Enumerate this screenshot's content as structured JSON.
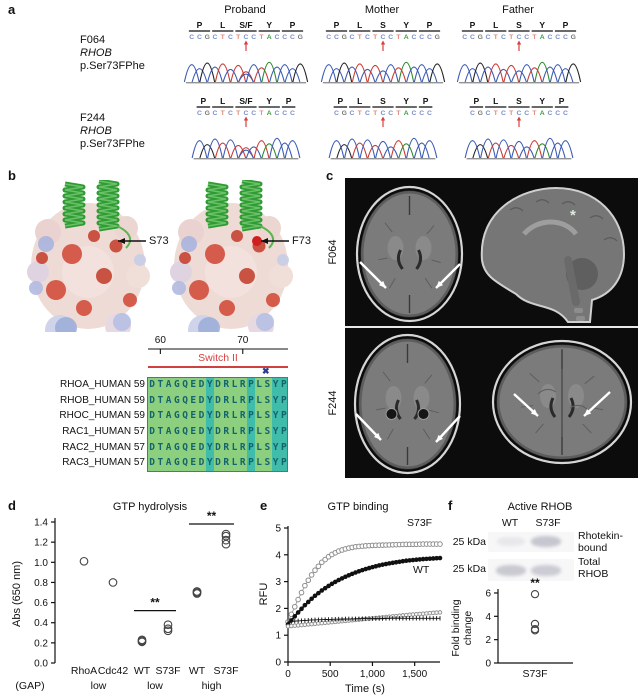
{
  "panels": {
    "a": {
      "label": "a",
      "col_headers": [
        "Proband",
        "Mother",
        "Father"
      ],
      "nt_letter_colors": {
        "A": "#3f9e3f",
        "C": "#7b90cc",
        "G": "#777777",
        "T": "#e08a7a"
      },
      "nt_trace_colors": {
        "A": "#2e8b2e",
        "C": "#3b5bb5",
        "G": "#222222",
        "T": "#cc3a33"
      },
      "rows": [
        {
          "family": "F064",
          "gene": "RHOB",
          "protein": "p.Ser73FPhe",
          "traces": [
            {
              "aa": [
                "P",
                "L",
                "S/F",
                "Y",
                "P"
              ],
              "codons": [
                "CCG",
                "CTC",
                "TCC",
                "TAC",
                "CCG"
              ],
              "arrow_nt_index": 7,
              "heterozygous": true
            },
            {
              "aa": [
                "P",
                "L",
                "S",
                "Y",
                "P"
              ],
              "codons": [
                "CCG",
                "CTC",
                "TCC",
                "TAC",
                "CCG"
              ],
              "arrow_nt_index": 7,
              "heterozygous": false
            },
            {
              "aa": [
                "P",
                "L",
                "S",
                "Y",
                "P"
              ],
              "codons": [
                "CCG",
                "CTC",
                "TCC",
                "TAC",
                "CCG"
              ],
              "arrow_nt_index": 7,
              "heterozygous": false
            }
          ]
        },
        {
          "family": "F244",
          "gene": "RHOB",
          "protein": "p.Ser73FPhe",
          "traces": [
            {
              "aa": [
                "P",
                "L",
                "S/F",
                "Y",
                "P"
              ],
              "codons": [
                "CG",
                "CTC",
                "TCC",
                "TAC",
                "CC"
              ],
              "arrow_nt_index": 6,
              "heterozygous": true
            },
            {
              "aa": [
                "P",
                "L",
                "S",
                "Y",
                "P"
              ],
              "codons": [
                "CG",
                "CTC",
                "TCC",
                "TAC",
                "CC"
              ],
              "arrow_nt_index": 6,
              "heterozygous": false
            },
            {
              "aa": [
                "P",
                "L",
                "S",
                "Y",
                "P"
              ],
              "codons": [
                "CG",
                "CTC",
                "TCC",
                "TAC",
                "CC"
              ],
              "arrow_nt_index": 6,
              "heterozygous": false
            }
          ]
        }
      ]
    },
    "b": {
      "label": "b",
      "structures": [
        {
          "residue_label": "S73",
          "red_pocket": false
        },
        {
          "residue_label": "F73",
          "red_pocket": true
        }
      ],
      "alignment": {
        "ruler_ticks": [
          "60",
          "70"
        ],
        "ruler_tick_cols": [
          2,
          12
        ],
        "region_label": "Switch II",
        "mutation_marker": "✖",
        "mutation_col": 15,
        "teal_cols": [
          8,
          13,
          16,
          17
        ],
        "colors": {
          "green": "#8ccf7f",
          "teal": "#3fbcaa",
          "border": "#b5522f"
        },
        "rows": [
          {
            "name": "RHOA_HUMAN",
            "start": "59",
            "seq": "DTAGQEDYDRLRPLSYP"
          },
          {
            "name": "RHOB_HUMAN",
            "start": "59",
            "seq": "DTAGQEDYDRLRPLSYP"
          },
          {
            "name": "RHOC_HUMAN",
            "start": "59",
            "seq": "DTAGQEDYDRLRPLSYP"
          },
          {
            "name": "RAC1_HUMAN",
            "start": "57",
            "seq": "DTAGQEDYDRLRPLSYP"
          },
          {
            "name": "RAC2_HUMAN",
            "start": "57",
            "seq": "DTAGQEDYDRLRPLSYP"
          },
          {
            "name": "RAC3_HUMAN",
            "start": "57",
            "seq": "DTAGQEDYDRLRPLSYP"
          }
        ]
      }
    },
    "c": {
      "label": "c",
      "rows": [
        {
          "family": "F064",
          "images": [
            {
              "view": "axial",
              "arrows": 2,
              "annotation": ""
            },
            {
              "view": "sagittal",
              "arrows": 0,
              "annotation": "*"
            }
          ]
        },
        {
          "family": "F244",
          "images": [
            {
              "view": "axial",
              "arrows": 2,
              "annotation": ""
            },
            {
              "view": "axial-high",
              "arrows": 2,
              "annotation": ""
            }
          ]
        }
      ]
    },
    "d": {
      "label": "d"
    },
    "e": {
      "label": "e"
    },
    "f": {
      "label": "f",
      "title": "Active RHOB",
      "lanes": [
        "WT",
        "S73F"
      ],
      "blots": [
        {
          "marker": "25 kDa",
          "label_lines": [
            "Rhotekin-",
            "bound"
          ],
          "band_intensity": [
            0.15,
            0.5
          ]
        },
        {
          "marker": "25 kDa",
          "label_lines": [
            "Total",
            "RHOB"
          ],
          "band_intensity": [
            0.48,
            0.45
          ]
        }
      ]
    }
  },
  "chart_data": [
    {
      "panel": "d",
      "type": "scatter",
      "title": "GTP hydrolysis",
      "ylabel": "Abs (650 nm)",
      "ylim": [
        0.0,
        1.4
      ],
      "yticks": [
        0.0,
        0.2,
        0.4,
        0.6,
        0.8,
        1.0,
        1.2,
        1.4
      ],
      "categories": [
        "RhoA",
        "Cdc42",
        "WT",
        "S73F",
        "WT",
        "S73F"
      ],
      "axis_note": "(GAP)",
      "group_labels": [
        {
          "text": "low",
          "between": [
            0,
            1
          ]
        },
        {
          "text": "low",
          "between": [
            2,
            3
          ]
        },
        {
          "text": "high",
          "between": [
            4,
            5
          ]
        }
      ],
      "values": [
        [
          1.01
        ],
        [
          0.8
        ],
        [
          0.21,
          0.22,
          0.23
        ],
        [
          0.32,
          0.34,
          0.38
        ],
        [
          0.69,
          0.7,
          0.71
        ],
        [
          1.18,
          1.22,
          1.26,
          1.28
        ]
      ],
      "significance": [
        {
          "between": [
            2,
            3
          ],
          "bar_y": 0.52,
          "label": "**"
        },
        {
          "between": [
            4,
            5
          ],
          "bar_y": 1.38,
          "label": "**"
        }
      ]
    },
    {
      "panel": "e",
      "type": "line",
      "title": "GTP binding",
      "xlabel": "Time (s)",
      "ylabel": "RFU",
      "xlim": [
        0,
        1800
      ],
      "ylim": [
        0,
        5
      ],
      "yticks": [
        0,
        1,
        2,
        3,
        4,
        5
      ],
      "xticks": [
        0,
        500,
        1000,
        1500
      ],
      "xtick_labels": [
        "0",
        "500",
        "1,000",
        "1,500"
      ],
      "x_sample": [
        0,
        100,
        200,
        300,
        400,
        500,
        600,
        700,
        800,
        900,
        1000,
        1100,
        1200,
        1300,
        1400,
        1500,
        1600,
        1700,
        1800
      ],
      "series": [
        {
          "name": "S73F",
          "style": "open-gray",
          "values": [
            1.5,
            2.2,
            2.85,
            3.35,
            3.72,
            3.98,
            4.14,
            4.24,
            4.3,
            4.33,
            4.35,
            4.36,
            4.37,
            4.38,
            4.39,
            4.39,
            4.4,
            4.4,
            4.4
          ]
        },
        {
          "name": "WT",
          "style": "filled-black",
          "values": [
            1.4,
            1.78,
            2.12,
            2.42,
            2.67,
            2.88,
            3.06,
            3.21,
            3.34,
            3.45,
            3.54,
            3.62,
            3.68,
            3.73,
            3.78,
            3.81,
            3.84,
            3.86,
            3.88
          ]
        },
        {
          "name": "",
          "style": "open-gray-small",
          "values": [
            1.33,
            1.36,
            1.39,
            1.42,
            1.45,
            1.48,
            1.51,
            1.54,
            1.57,
            1.6,
            1.63,
            1.66,
            1.69,
            1.72,
            1.75,
            1.78,
            1.8,
            1.83,
            1.85
          ]
        },
        {
          "name": "",
          "style": "tick-black",
          "values": [
            1.5,
            1.53,
            1.55,
            1.57,
            1.58,
            1.59,
            1.6,
            1.61,
            1.61,
            1.62,
            1.62,
            1.62,
            1.63,
            1.63,
            1.63,
            1.63,
            1.63,
            1.63,
            1.63
          ]
        }
      ],
      "annotations": [
        {
          "text": "S73F"
        },
        {
          "text": "WT"
        }
      ]
    },
    {
      "panel": "f",
      "type": "scatter",
      "ylabel_lines": [
        "Fold binding",
        "change"
      ],
      "ylim": [
        0,
        6
      ],
      "yticks": [
        0,
        2,
        4,
        6
      ],
      "categories": [
        "S73F"
      ],
      "values": [
        [
          5.9,
          3.35,
          2.9,
          2.8
        ]
      ],
      "significance": [
        {
          "label": "**"
        }
      ]
    }
  ]
}
